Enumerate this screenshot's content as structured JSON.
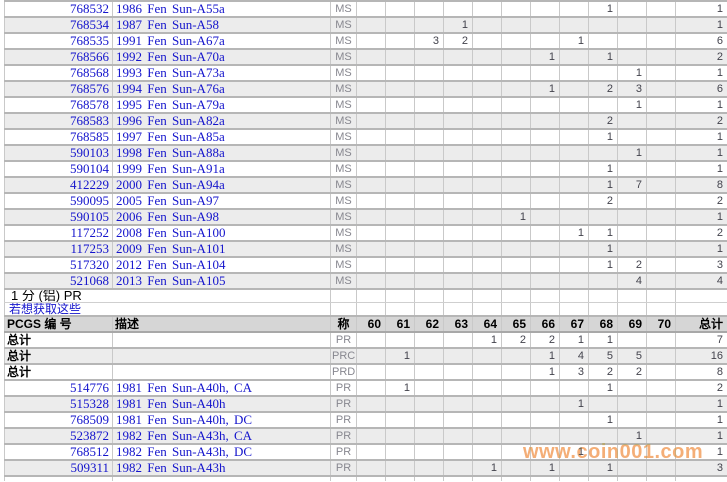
{
  "watermark": "www.coin001.com",
  "colors": {
    "link_blue": "#1414cc",
    "digit_gray": "#43434d",
    "grade_gray": "#87878f",
    "header_bg": "#d6d6d6",
    "stripe_bg": "#ececec",
    "grid_gray": "#b6b6b6",
    "watermark_orange": "#f3a76b"
  },
  "section": {
    "title": "1 分 (铝) PR",
    "link": "若想获取这些"
  },
  "header": {
    "pcgs": "PCGS 编 号",
    "desc": "描述",
    "grade": "称",
    "grade_cols": [
      "60",
      "61",
      "62",
      "63",
      "64",
      "65",
      "66",
      "67",
      "68",
      "69",
      "70"
    ],
    "total": "总计"
  },
  "top_rows": [
    {
      "pcgs": "768532",
      "desc": "1986 Fen Sun-A55a",
      "grade": "MS",
      "values": [
        "",
        "",
        "",
        "",
        "",
        "",
        "",
        "",
        "1",
        "",
        ""
      ],
      "total": "1"
    },
    {
      "pcgs": "768534",
      "desc": "1987 Fen Sun-A58",
      "grade": "MS",
      "values": [
        "",
        "",
        "",
        "1",
        "",
        "",
        "",
        "",
        "",
        "",
        ""
      ],
      "total": "1"
    },
    {
      "pcgs": "768535",
      "desc": "1991 Fen Sun-A67a",
      "grade": "MS",
      "values": [
        "",
        "",
        "3",
        "2",
        "",
        "",
        "",
        "1",
        "",
        "",
        ""
      ],
      "total": "6"
    },
    {
      "pcgs": "768566",
      "desc": "1992 Fen Sun-A70a",
      "grade": "MS",
      "values": [
        "",
        "",
        "",
        "",
        "",
        "",
        "1",
        "",
        "1",
        "",
        ""
      ],
      "total": "2"
    },
    {
      "pcgs": "768568",
      "desc": "1993 Fen Sun-A73a",
      "grade": "MS",
      "values": [
        "",
        "",
        "",
        "",
        "",
        "",
        "",
        "",
        "",
        "1",
        ""
      ],
      "total": "1"
    },
    {
      "pcgs": "768576",
      "desc": "1994 Fen Sun-A76a",
      "grade": "MS",
      "values": [
        "",
        "",
        "",
        "",
        "",
        "",
        "1",
        "",
        "2",
        "3",
        ""
      ],
      "total": "6"
    },
    {
      "pcgs": "768578",
      "desc": "1995 Fen Sun-A79a",
      "grade": "MS",
      "values": [
        "",
        "",
        "",
        "",
        "",
        "",
        "",
        "",
        "",
        "1",
        ""
      ],
      "total": "1"
    },
    {
      "pcgs": "768583",
      "desc": "1996 Fen Sun-A82a",
      "grade": "MS",
      "values": [
        "",
        "",
        "",
        "",
        "",
        "",
        "",
        "",
        "2",
        "",
        ""
      ],
      "total": "2"
    },
    {
      "pcgs": "768585",
      "desc": "1997 Fen Sun-A85a",
      "grade": "MS",
      "values": [
        "",
        "",
        "",
        "",
        "",
        "",
        "",
        "",
        "1",
        "",
        ""
      ],
      "total": "1"
    },
    {
      "pcgs": "590103",
      "desc": "1998 Fen Sun-A88a",
      "grade": "MS",
      "values": [
        "",
        "",
        "",
        "",
        "",
        "",
        "",
        "",
        "",
        "1",
        ""
      ],
      "total": "1"
    },
    {
      "pcgs": "590104",
      "desc": "1999 Fen Sun-A91a",
      "grade": "MS",
      "values": [
        "",
        "",
        "",
        "",
        "",
        "",
        "",
        "",
        "1",
        "",
        ""
      ],
      "total": "1"
    },
    {
      "pcgs": "412229",
      "desc": "2000 Fen Sun-A94a",
      "grade": "MS",
      "values": [
        "",
        "",
        "",
        "",
        "",
        "",
        "",
        "",
        "1",
        "7",
        ""
      ],
      "total": "8"
    },
    {
      "pcgs": "590095",
      "desc": "2005 Fen Sun-A97",
      "grade": "MS",
      "values": [
        "",
        "",
        "",
        "",
        "",
        "",
        "",
        "",
        "2",
        "",
        ""
      ],
      "total": "2"
    },
    {
      "pcgs": "590105",
      "desc": "2006 Fen Sun-A98",
      "grade": "MS",
      "values": [
        "",
        "",
        "",
        "",
        "",
        "1",
        "",
        "",
        "",
        "",
        ""
      ],
      "total": "1"
    },
    {
      "pcgs": "117252",
      "desc": "2008 Fen Sun-A100",
      "grade": "MS",
      "values": [
        "",
        "",
        "",
        "",
        "",
        "",
        "",
        "1",
        "1",
        "",
        ""
      ],
      "total": "2"
    },
    {
      "pcgs": "117253",
      "desc": "2009 Fen Sun-A101",
      "grade": "MS",
      "values": [
        "",
        "",
        "",
        "",
        "",
        "",
        "",
        "",
        "1",
        "",
        ""
      ],
      "total": "1"
    },
    {
      "pcgs": "517320",
      "desc": "2012 Fen Sun-A104",
      "grade": "MS",
      "values": [
        "",
        "",
        "",
        "",
        "",
        "",
        "",
        "",
        "1",
        "2",
        ""
      ],
      "total": "3"
    },
    {
      "pcgs": "521068",
      "desc": "2013 Fen Sun-A105",
      "grade": "MS",
      "values": [
        "",
        "",
        "",
        "",
        "",
        "",
        "",
        "",
        "",
        "4",
        ""
      ],
      "total": "4"
    }
  ],
  "total_rows": [
    {
      "label": "总计",
      "grade": "PR",
      "values": [
        "",
        "",
        "",
        "",
        "1",
        "2",
        "2",
        "1",
        "1",
        "",
        ""
      ],
      "total": "7"
    },
    {
      "label": "总计",
      "grade": "PRC",
      "values": [
        "",
        "1",
        "",
        "",
        "",
        "",
        "1",
        "4",
        "5",
        "5",
        ""
      ],
      "total": "16"
    },
    {
      "label": "总计",
      "grade": "PRD",
      "values": [
        "",
        "",
        "",
        "",
        "",
        "",
        "1",
        "3",
        "2",
        "2",
        ""
      ],
      "total": "8"
    }
  ],
  "bottom_rows": [
    {
      "pcgs": "514776",
      "desc": "1981 Fen Sun-A40h, CA",
      "grade": "PR",
      "values": [
        "",
        "1",
        "",
        "",
        "",
        "",
        "",
        "",
        "1",
        "",
        ""
      ],
      "total": "2"
    },
    {
      "pcgs": "515328",
      "desc": "1981 Fen Sun-A40h",
      "grade": "PR",
      "values": [
        "",
        "",
        "",
        "",
        "",
        "",
        "",
        "1",
        "",
        "",
        ""
      ],
      "total": "1"
    },
    {
      "pcgs": "768509",
      "desc": "1981 Fen Sun-A40h, DC",
      "grade": "PR",
      "values": [
        "",
        "",
        "",
        "",
        "",
        "",
        "",
        "",
        "1",
        "",
        ""
      ],
      "total": "1"
    },
    {
      "pcgs": "523872",
      "desc": "1982 Fen Sun-A43h, CA",
      "grade": "PR",
      "values": [
        "",
        "",
        "",
        "",
        "",
        "",
        "",
        "",
        "",
        "1",
        ""
      ],
      "total": "1"
    },
    {
      "pcgs": "768512",
      "desc": "1982 Fen Sun-A43h, DC",
      "grade": "PR",
      "values": [
        "",
        "",
        "",
        "",
        "",
        "",
        "",
        "1",
        "",
        "",
        ""
      ],
      "total": "1"
    },
    {
      "pcgs": "509311",
      "desc": "1982 Fen Sun-A43h",
      "grade": "PR",
      "values": [
        "",
        "",
        "",
        "",
        "1",
        "",
        "1",
        "",
        "1",
        "",
        ""
      ],
      "total": "3"
    }
  ]
}
